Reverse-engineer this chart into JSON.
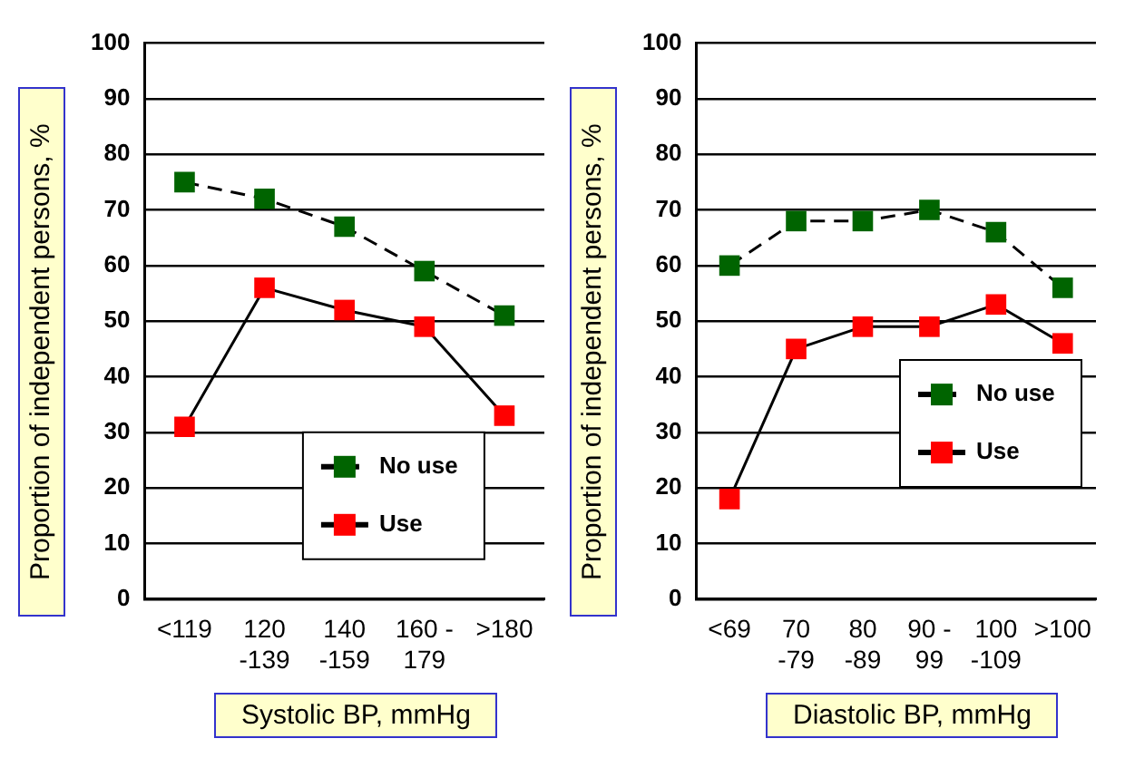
{
  "chart_data": [
    {
      "type": "line",
      "xlabel": "Systolic BP, mmHg",
      "ylabel": "Proportion of independent persons, %",
      "categories": [
        "<119",
        "120 -139",
        "140 -159",
        "160 - 179",
        ">180"
      ],
      "series": [
        {
          "name": "No use",
          "color": "#006400",
          "values": [
            75,
            72,
            67,
            59,
            51
          ],
          "line_style": "dashed"
        },
        {
          "name": "Use",
          "color": "#ff0000",
          "values": [
            31,
            56,
            52,
            49,
            33
          ],
          "line_style": "solid"
        }
      ],
      "ylim": [
        0,
        100
      ],
      "yticks": [
        0,
        10,
        20,
        30,
        40,
        50,
        60,
        70,
        80,
        90,
        100
      ],
      "grid": "y",
      "legend": "bottom right",
      "marker": "square"
    },
    {
      "type": "line",
      "xlabel": "Diastolic BP, mmHg",
      "ylabel": "Proportion of  independent persons, %",
      "categories": [
        "<69",
        "70 -79",
        "80 -89",
        "90 - 99",
        "100 -109",
        ">100"
      ],
      "series": [
        {
          "name": "No use",
          "color": "#006400",
          "values": [
            60,
            68,
            68,
            70,
            66,
            56
          ],
          "line_style": "dashed"
        },
        {
          "name": "Use",
          "color": "#ff0000",
          "values": [
            18,
            45,
            49,
            49,
            53,
            46
          ],
          "line_style": "solid"
        }
      ],
      "ylim": [
        0,
        100
      ],
      "yticks": [
        0,
        10,
        20,
        30,
        40,
        50,
        60,
        70,
        80,
        90,
        100
      ],
      "grid": "y",
      "legend": "right",
      "marker": "square"
    }
  ]
}
